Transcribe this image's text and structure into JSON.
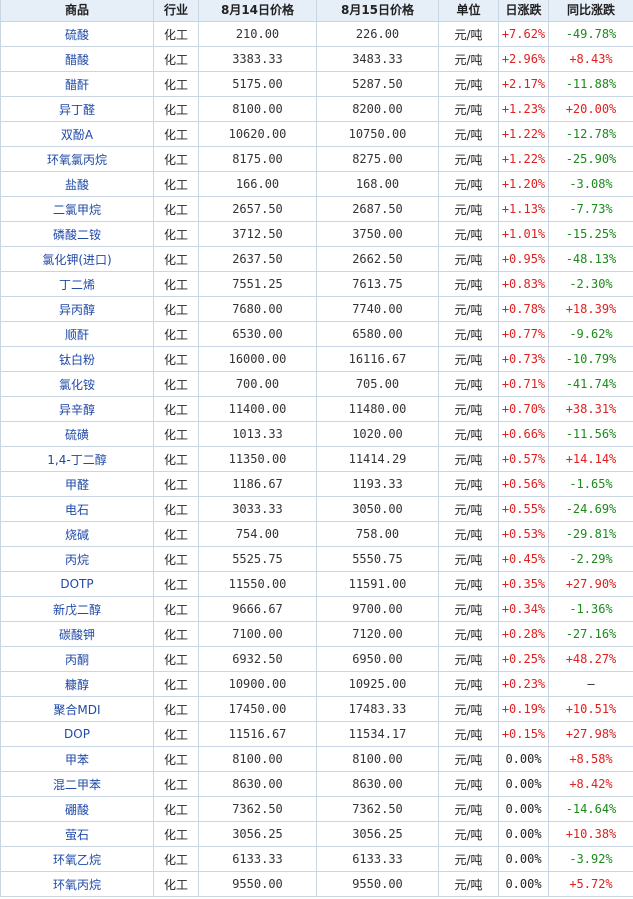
{
  "headers": [
    "商品",
    "行业",
    "8月14日价格",
    "8月15日价格",
    "单位",
    "日涨跌",
    "同比涨跌"
  ],
  "colors": {
    "up": "#e02020",
    "down": "#1b8a1b",
    "name": "#1f4aa8",
    "header_bg": "#e6eef8",
    "border": "#c9d5e3"
  },
  "rows": [
    {
      "name": "硫酸",
      "industry": "化工",
      "p1": "210.00",
      "p2": "226.00",
      "unit": "元/吨",
      "day": "+7.62%",
      "yoy": "-49.78%"
    },
    {
      "name": "醋酸",
      "industry": "化工",
      "p1": "3383.33",
      "p2": "3483.33",
      "unit": "元/吨",
      "day": "+2.96%",
      "yoy": "+8.43%"
    },
    {
      "name": "醋酐",
      "industry": "化工",
      "p1": "5175.00",
      "p2": "5287.50",
      "unit": "元/吨",
      "day": "+2.17%",
      "yoy": "-11.88%"
    },
    {
      "name": "异丁醛",
      "industry": "化工",
      "p1": "8100.00",
      "p2": "8200.00",
      "unit": "元/吨",
      "day": "+1.23%",
      "yoy": "+20.00%"
    },
    {
      "name": "双酚A",
      "industry": "化工",
      "p1": "10620.00",
      "p2": "10750.00",
      "unit": "元/吨",
      "day": "+1.22%",
      "yoy": "-12.78%"
    },
    {
      "name": "环氧氯丙烷",
      "industry": "化工",
      "p1": "8175.00",
      "p2": "8275.00",
      "unit": "元/吨",
      "day": "+1.22%",
      "yoy": "-25.90%"
    },
    {
      "name": "盐酸",
      "industry": "化工",
      "p1": "166.00",
      "p2": "168.00",
      "unit": "元/吨",
      "day": "+1.20%",
      "yoy": "-3.08%"
    },
    {
      "name": "二氯甲烷",
      "industry": "化工",
      "p1": "2657.50",
      "p2": "2687.50",
      "unit": "元/吨",
      "day": "+1.13%",
      "yoy": "-7.73%"
    },
    {
      "name": "磷酸二铵",
      "industry": "化工",
      "p1": "3712.50",
      "p2": "3750.00",
      "unit": "元/吨",
      "day": "+1.01%",
      "yoy": "-15.25%"
    },
    {
      "name": "氯化钾(进口)",
      "industry": "化工",
      "p1": "2637.50",
      "p2": "2662.50",
      "unit": "元/吨",
      "day": "+0.95%",
      "yoy": "-48.13%"
    },
    {
      "name": "丁二烯",
      "industry": "化工",
      "p1": "7551.25",
      "p2": "7613.75",
      "unit": "元/吨",
      "day": "+0.83%",
      "yoy": "-2.30%"
    },
    {
      "name": "异丙醇",
      "industry": "化工",
      "p1": "7680.00",
      "p2": "7740.00",
      "unit": "元/吨",
      "day": "+0.78%",
      "yoy": "+18.39%"
    },
    {
      "name": "顺酐",
      "industry": "化工",
      "p1": "6530.00",
      "p2": "6580.00",
      "unit": "元/吨",
      "day": "+0.77%",
      "yoy": "-9.62%"
    },
    {
      "name": "钛白粉",
      "industry": "化工",
      "p1": "16000.00",
      "p2": "16116.67",
      "unit": "元/吨",
      "day": "+0.73%",
      "yoy": "-10.79%"
    },
    {
      "name": "氯化铵",
      "industry": "化工",
      "p1": "700.00",
      "p2": "705.00",
      "unit": "元/吨",
      "day": "+0.71%",
      "yoy": "-41.74%"
    },
    {
      "name": "异辛醇",
      "industry": "化工",
      "p1": "11400.00",
      "p2": "11480.00",
      "unit": "元/吨",
      "day": "+0.70%",
      "yoy": "+38.31%"
    },
    {
      "name": "硫磺",
      "industry": "化工",
      "p1": "1013.33",
      "p2": "1020.00",
      "unit": "元/吨",
      "day": "+0.66%",
      "yoy": "-11.56%"
    },
    {
      "name": "1,4-丁二醇",
      "industry": "化工",
      "p1": "11350.00",
      "p2": "11414.29",
      "unit": "元/吨",
      "day": "+0.57%",
      "yoy": "+14.14%"
    },
    {
      "name": "甲醛",
      "industry": "化工",
      "p1": "1186.67",
      "p2": "1193.33",
      "unit": "元/吨",
      "day": "+0.56%",
      "yoy": "-1.65%"
    },
    {
      "name": "电石",
      "industry": "化工",
      "p1": "3033.33",
      "p2": "3050.00",
      "unit": "元/吨",
      "day": "+0.55%",
      "yoy": "-24.69%"
    },
    {
      "name": "烧碱",
      "industry": "化工",
      "p1": "754.00",
      "p2": "758.00",
      "unit": "元/吨",
      "day": "+0.53%",
      "yoy": "-29.81%"
    },
    {
      "name": "丙烷",
      "industry": "化工",
      "p1": "5525.75",
      "p2": "5550.75",
      "unit": "元/吨",
      "day": "+0.45%",
      "yoy": "-2.29%"
    },
    {
      "name": "DOTP",
      "industry": "化工",
      "p1": "11550.00",
      "p2": "11591.00",
      "unit": "元/吨",
      "day": "+0.35%",
      "yoy": "+27.90%"
    },
    {
      "name": "新戊二醇",
      "industry": "化工",
      "p1": "9666.67",
      "p2": "9700.00",
      "unit": "元/吨",
      "day": "+0.34%",
      "yoy": "-1.36%"
    },
    {
      "name": "碳酸钾",
      "industry": "化工",
      "p1": "7100.00",
      "p2": "7120.00",
      "unit": "元/吨",
      "day": "+0.28%",
      "yoy": "-27.16%"
    },
    {
      "name": "丙酮",
      "industry": "化工",
      "p1": "6932.50",
      "p2": "6950.00",
      "unit": "元/吨",
      "day": "+0.25%",
      "yoy": "+48.27%"
    },
    {
      "name": "糠醇",
      "industry": "化工",
      "p1": "10900.00",
      "p2": "10925.00",
      "unit": "元/吨",
      "day": "+0.23%",
      "yoy": "—"
    },
    {
      "name": "聚合MDI",
      "industry": "化工",
      "p1": "17450.00",
      "p2": "17483.33",
      "unit": "元/吨",
      "day": "+0.19%",
      "yoy": "+10.51%"
    },
    {
      "name": "DOP",
      "industry": "化工",
      "p1": "11516.67",
      "p2": "11534.17",
      "unit": "元/吨",
      "day": "+0.15%",
      "yoy": "+27.98%"
    },
    {
      "name": "甲苯",
      "industry": "化工",
      "p1": "8100.00",
      "p2": "8100.00",
      "unit": "元/吨",
      "day": "0.00%",
      "yoy": "+8.58%"
    },
    {
      "name": "混二甲苯",
      "industry": "化工",
      "p1": "8630.00",
      "p2": "8630.00",
      "unit": "元/吨",
      "day": "0.00%",
      "yoy": "+8.42%"
    },
    {
      "name": "硼酸",
      "industry": "化工",
      "p1": "7362.50",
      "p2": "7362.50",
      "unit": "元/吨",
      "day": "0.00%",
      "yoy": "-14.64%"
    },
    {
      "name": "萤石",
      "industry": "化工",
      "p1": "3056.25",
      "p2": "3056.25",
      "unit": "元/吨",
      "day": "0.00%",
      "yoy": "+10.38%"
    },
    {
      "name": "环氧乙烷",
      "industry": "化工",
      "p1": "6133.33",
      "p2": "6133.33",
      "unit": "元/吨",
      "day": "0.00%",
      "yoy": "-3.92%"
    },
    {
      "name": "环氧丙烷",
      "industry": "化工",
      "p1": "9550.00",
      "p2": "9550.00",
      "unit": "元/吨",
      "day": "0.00%",
      "yoy": "+5.72%"
    }
  ]
}
